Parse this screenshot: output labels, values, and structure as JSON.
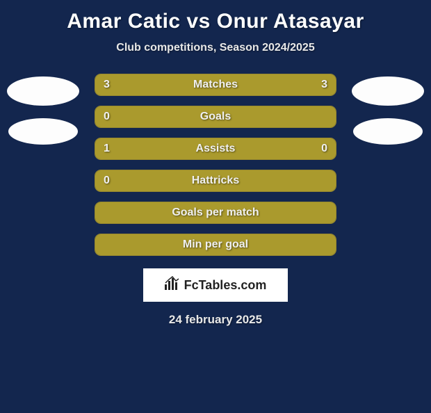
{
  "title": "Amar Catic vs Onur Atasayar",
  "subtitle": "Club competitions, Season 2024/2025",
  "date": "24 february 2025",
  "logo": {
    "icon": "📊",
    "text": "FcTables.com"
  },
  "colors": {
    "background": "#13264e",
    "bar_fill": "#aa9a2d",
    "bar_border": "#9a8a2d",
    "avatar": "#fdfdfd",
    "text_light": "#f0f0f0",
    "text_white": "#ffffff"
  },
  "avatars": {
    "left": [
      true,
      true
    ],
    "right": [
      true,
      true
    ]
  },
  "stats": [
    {
      "label": "Matches",
      "left_val": "3",
      "right_val": "3",
      "left_pct": 50,
      "right_pct": 50,
      "show_vals": true
    },
    {
      "label": "Goals",
      "left_val": "0",
      "right_val": "",
      "left_pct": 100,
      "right_pct": 0,
      "show_vals": "left"
    },
    {
      "label": "Assists",
      "left_val": "1",
      "right_val": "0",
      "left_pct": 78,
      "right_pct": 22,
      "show_vals": true
    },
    {
      "label": "Hattricks",
      "left_val": "0",
      "right_val": "",
      "left_pct": 100,
      "right_pct": 0,
      "show_vals": "left"
    },
    {
      "label": "Goals per match",
      "left_val": "",
      "right_val": "",
      "left_pct": 100,
      "right_pct": 0,
      "show_vals": false
    },
    {
      "label": "Min per goal",
      "left_val": "",
      "right_val": "",
      "left_pct": 100,
      "right_pct": 0,
      "show_vals": false
    }
  ]
}
